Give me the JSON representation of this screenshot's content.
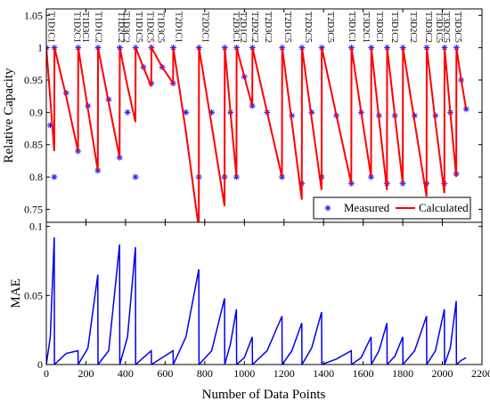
{
  "chart_data": [
    {
      "type": "line",
      "ylabel": "Relative Capacity",
      "xlim": [
        0,
        2200
      ],
      "ylim": [
        0.73,
        1.06
      ],
      "yticks": [
        0.75,
        0.8,
        0.85,
        0.9,
        0.95,
        1,
        1.05
      ],
      "legend": "lower right",
      "x": [
        0,
        20,
        40,
        41,
        100,
        160,
        161,
        210,
        260,
        261,
        315,
        370,
        371,
        410,
        450,
        451,
        490,
        530,
        531,
        585,
        640,
        641,
        705,
        770,
        771,
        835,
        900,
        901,
        930,
        960,
        961,
        1000,
        1040,
        1041,
        1115,
        1190,
        1191,
        1240,
        1290,
        1291,
        1340,
        1390,
        1391,
        1465,
        1540,
        1541,
        1590,
        1640,
        1641,
        1680,
        1720,
        1721,
        1760,
        1800,
        1801,
        1860,
        1920,
        1921,
        1965,
        2010,
        2011,
        2040,
        2070,
        2071,
        2095,
        2120
      ],
      "series": [
        {
          "name": "Measured",
          "color": "#1f1fff",
          "marker": "star",
          "values": [
            1,
            0.88,
            0.8,
            1,
            0.93,
            0.84,
            1,
            0.91,
            0.81,
            1,
            0.92,
            0.83,
            1,
            0.9,
            0.8,
            1,
            0.97,
            0.945,
            1,
            0.97,
            0.945,
            1,
            0.9,
            0.8,
            1,
            0.9,
            0.8,
            1,
            0.9,
            0.8,
            1,
            0.955,
            0.91,
            1,
            0.9,
            0.8,
            1,
            0.895,
            0.79,
            1,
            0.9,
            0.8,
            1,
            0.895,
            0.79,
            1,
            0.9,
            0.8,
            1,
            0.895,
            0.79,
            1,
            0.895,
            0.79,
            1,
            0.895,
            0.79,
            1,
            0.895,
            0.79,
            1,
            0.9,
            0.805,
            1,
            0.95,
            0.905
          ]
        },
        {
          "name": "Calculated",
          "color": "#ff0000",
          "marker": "none",
          "values": [
            1,
            0.92,
            0.84,
            1,
            0.925,
            0.84,
            1,
            0.905,
            0.81,
            1,
            0.915,
            0.83,
            1,
            0.94,
            0.885,
            1,
            0.97,
            0.94,
            1,
            0.97,
            0.945,
            1,
            0.87,
            0.72,
            1,
            0.88,
            0.755,
            1,
            0.9,
            0.8,
            1,
            0.955,
            0.91,
            1,
            0.9,
            0.8,
            1,
            0.885,
            0.765,
            1,
            0.89,
            0.78,
            1,
            0.895,
            0.79,
            1,
            0.9,
            0.8,
            1,
            0.89,
            0.78,
            1,
            0.895,
            0.79,
            1,
            0.885,
            0.77,
            1,
            0.885,
            0.775,
            1,
            0.9,
            0.8,
            1,
            0.95,
            0.905
          ]
        }
      ],
      "annotations": [
        {
          "text": "T1D1C1",
          "x": 22
        },
        {
          "text": "T1D2C1",
          "x": 153
        },
        {
          "text": "T1D3C1",
          "x": 194
        },
        {
          "text": "T1D1C2",
          "x": 261
        },
        {
          "text": "T1D2C2",
          "x": 374
        },
        {
          "text": "T1D3C2",
          "x": 400
        },
        {
          "text": "T1D1C5",
          "x": 464
        },
        {
          "text": "T1D2C5",
          "x": 522
        },
        {
          "text": "T1D3C5",
          "x": 576
        },
        {
          "text": "T2D1C1",
          "x": 666
        },
        {
          "text": "T2D2C1",
          "x": 801
        },
        {
          "text": "T2D3C1",
          "x": 954
        },
        {
          "text": "T2D1C2",
          "x": 990
        },
        {
          "text": "T2D2C2",
          "x": 1049
        },
        {
          "text": "T2D3C2",
          "x": 1116
        },
        {
          "text": "T2D1C5",
          "x": 1215
        },
        {
          "text": "T2D2C5",
          "x": 1319
        },
        {
          "text": "T2D3C5",
          "x": 1431
        },
        {
          "text": "T3D1C1",
          "x": 1539
        },
        {
          "text": "T3D2C1",
          "x": 1611
        },
        {
          "text": "T3D3C1",
          "x": 1679
        },
        {
          "text": "T3D1C2",
          "x": 1755
        },
        {
          "text": "T3D2C2",
          "x": 1850
        },
        {
          "text": "T3D3C2",
          "x": 1926
        },
        {
          "text": "T3D1C5",
          "x": 1980
        },
        {
          "text": "T3D2C5",
          "x": 2016
        },
        {
          "text": "T3D3C5",
          "x": 2075
        }
      ]
    },
    {
      "type": "line",
      "ylabel": "MAE",
      "xlabel": "Number of Data Points",
      "xlim": [
        0,
        2200
      ],
      "xticks": [
        0,
        200,
        400,
        600,
        800,
        1000,
        1200,
        1400,
        1600,
        1800,
        2000,
        2200
      ],
      "ylim": [
        0,
        0.103
      ],
      "yticks": [
        0,
        0.05,
        0.1
      ],
      "x": [
        0,
        20,
        40,
        41,
        100,
        160,
        161,
        210,
        260,
        261,
        315,
        370,
        371,
        410,
        450,
        451,
        490,
        530,
        531,
        585,
        640,
        641,
        705,
        770,
        771,
        835,
        900,
        901,
        930,
        960,
        961,
        1000,
        1040,
        1041,
        1115,
        1190,
        1191,
        1240,
        1290,
        1291,
        1340,
        1390,
        1391,
        1465,
        1540,
        1541,
        1590,
        1640,
        1641,
        1680,
        1720,
        1721,
        1760,
        1800,
        1801,
        1860,
        1920,
        1921,
        1965,
        2010,
        2011,
        2040,
        2070,
        2071,
        2095,
        2120
      ],
      "series": [
        {
          "color": "#0000ee",
          "values": [
            0,
            0.02,
            0.092,
            0,
            0.008,
            0.01,
            0,
            0.012,
            0.065,
            0,
            0.01,
            0.087,
            0,
            0.02,
            0.085,
            0,
            0.005,
            0.01,
            0,
            0.005,
            0.01,
            0,
            0.02,
            0.069,
            0,
            0.01,
            0.048,
            0,
            0.015,
            0.04,
            0,
            0.005,
            0.02,
            0,
            0.01,
            0.035,
            0,
            0.01,
            0.03,
            0,
            0.012,
            0.038,
            0,
            0.004,
            0.01,
            0,
            0.005,
            0.02,
            0,
            0.01,
            0.03,
            0,
            0.006,
            0.02,
            0,
            0.01,
            0.035,
            0,
            0.01,
            0.04,
            0,
            0.012,
            0.046,
            0,
            0.003,
            0.005
          ]
        }
      ]
    }
  ]
}
